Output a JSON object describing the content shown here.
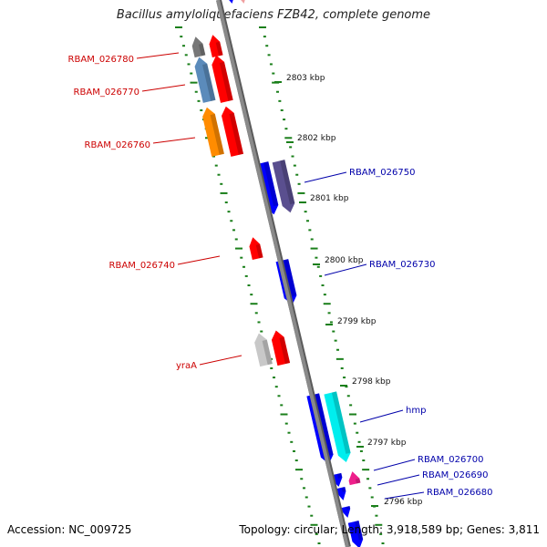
{
  "title": "Bacillus amyloliquefaciens FZB42, complete genome",
  "accession": "Accession: NC_009725",
  "topology": "Topology: circular; Length: 3,918,589 bp; Genes: 3,811",
  "colors": {
    "backbone": "#8a8a8a",
    "tick": "#1a7f1a",
    "forward_label": "#cc0000",
    "reverse_label": "#0000aa",
    "red": "#ff0000",
    "blue": "#0000ff",
    "slate": "#5a4f8f",
    "steel": "#5b8bbb",
    "orange": "#ff8c00",
    "grey": "#777777",
    "light_grey": "#c8c8c8",
    "cyan": "#00eeee",
    "magenta": "#ee1f8b"
  },
  "scale_labels": [
    "2803 kbp",
    "2802 kbp",
    "2801 kbp",
    "2800 kbp",
    "2799 kbp",
    "2798 kbp",
    "2797 kbp",
    "2796 kbp"
  ],
  "forward_labels": [
    "RBAM_026780",
    "RBAM_026770",
    "RBAM_026760",
    "RBAM_026740",
    "yraA"
  ],
  "reverse_labels": [
    "RBAM_026750",
    "RBAM_026730",
    "hmp",
    "RBAM_026700",
    "RBAM_026690",
    "RBAM_026680"
  ]
}
